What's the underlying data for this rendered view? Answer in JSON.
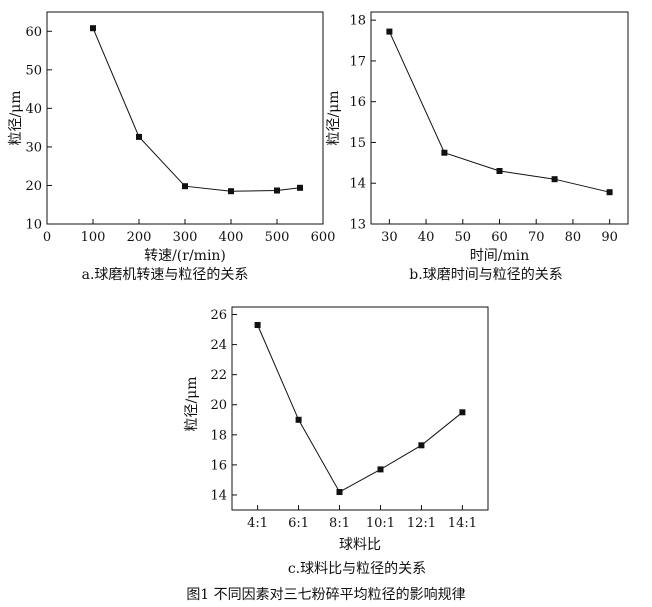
{
  "figure_caption": "图1  不同因素对三七粉碎平均粒径的影响规律",
  "chart_data": [
    {
      "id": "a",
      "type": "line",
      "caption": "a.球磨机转速与粒径的关系",
      "xlabel": "转速/(r/min)",
      "ylabel": "粒径/μm",
      "x": [
        100,
        200,
        300,
        400,
        500,
        550
      ],
      "series": [
        {
          "values": [
            60.8,
            32.6,
            19.8,
            18.5,
            18.7,
            19.4
          ]
        }
      ],
      "xlim": [
        0,
        600
      ],
      "ylim": [
        10,
        65
      ],
      "xticks": [
        "0",
        "100",
        "200",
        "300",
        "400",
        "500",
        "600"
      ],
      "yticks": [
        "10",
        "20",
        "30",
        "40",
        "50",
        "60"
      ],
      "grid": false,
      "legend": "none",
      "marker": "square",
      "colors": {
        "line": "#111111",
        "marker": "#111111"
      }
    },
    {
      "id": "b",
      "type": "line",
      "caption": "b.球磨时间与粒径的关系",
      "xlabel": "时间/min",
      "ylabel": "粒径/μm",
      "x": [
        30,
        45,
        60,
        75,
        90
      ],
      "series": [
        {
          "values": [
            17.72,
            14.75,
            14.3,
            14.1,
            13.78
          ]
        }
      ],
      "xlim": [
        25,
        95
      ],
      "ylim": [
        13,
        18.2
      ],
      "xticks": [
        "30",
        "40",
        "50",
        "60",
        "70",
        "80",
        "90"
      ],
      "yticks": [
        "13",
        "14",
        "15",
        "16",
        "17",
        "18"
      ],
      "grid": false,
      "legend": "none",
      "marker": "square",
      "colors": {
        "line": "#111111",
        "marker": "#111111"
      }
    },
    {
      "id": "c",
      "type": "line",
      "caption": "c.球料比与粒径的关系",
      "xlabel": "球料比",
      "ylabel": "粒径/μm",
      "categories": [
        "4:1",
        "6:1",
        "8:1",
        "10:1",
        "12:1",
        "14:1"
      ],
      "series": [
        {
          "values": [
            25.3,
            19.0,
            14.2,
            15.7,
            17.3,
            19.5
          ]
        }
      ],
      "ylim": [
        13,
        26.5
      ],
      "yticks": [
        "14",
        "16",
        "18",
        "20",
        "22",
        "24",
        "26"
      ],
      "grid": false,
      "legend": "none",
      "marker": "square",
      "colors": {
        "line": "#111111",
        "marker": "#111111"
      }
    }
  ]
}
